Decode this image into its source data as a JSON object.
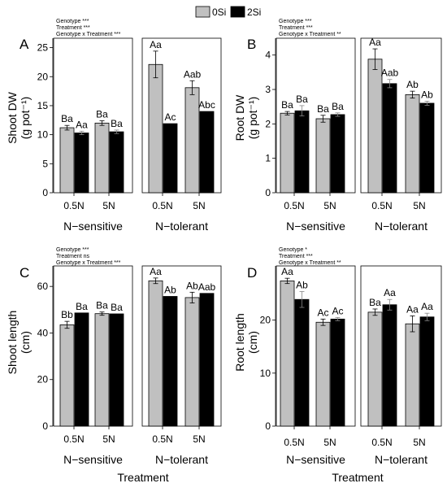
{
  "legend": {
    "items": [
      {
        "label": "0Si",
        "color": "#c0c0c0"
      },
      {
        "label": "2Si",
        "color": "#000000"
      }
    ]
  },
  "colors": {
    "s0Si": "#c0c0c0",
    "s2Si": "#000000",
    "bar_edge": "#000000"
  },
  "shared_xlabel": "Treatment",
  "chart_data": [
    {
      "type": "bar",
      "panel": "A",
      "ylabel_lines": [
        "Shoot DW",
        "(g pot⁻¹)"
      ],
      "ylim": [
        0,
        25.5
      ],
      "yticks": [
        0,
        5,
        10,
        15,
        20,
        25
      ],
      "significance": [
        "Genotype ***",
        "Treatment ***",
        "Genotype x Treatment ***"
      ],
      "groups": [
        "N−sensitive",
        "N−tolerant"
      ],
      "categories": [
        "0.5N",
        "5N"
      ],
      "series": [
        {
          "name": "0Si",
          "values": [
            [
              11.2,
              12.0
            ],
            [
              22.1,
              18.1
            ]
          ],
          "errors": [
            [
              0.4,
              0.4
            ],
            [
              2.3,
              1.2
            ]
          ],
          "letters": [
            [
              "Ba",
              "Ba"
            ],
            [
              "Aa",
              "Aab"
            ]
          ]
        },
        {
          "name": "2Si",
          "values": [
            [
              10.3,
              10.5
            ],
            [
              11.9,
              14.0
            ]
          ],
          "errors": [
            [
              0.3,
              0.3
            ],
            [
              0.0,
              0.0
            ]
          ],
          "letters": [
            [
              "Aa",
              "Ba"
            ],
            [
              "Ac",
              "Abc"
            ]
          ]
        }
      ]
    },
    {
      "type": "bar",
      "panel": "B",
      "ylabel_lines": [
        "Root DW",
        "(g pot⁻¹)"
      ],
      "ylim": [
        0,
        4.3
      ],
      "yticks": [
        0,
        1,
        2,
        3,
        4
      ],
      "significance": [
        "Genotype ***",
        "Treatment ***",
        "Genotype x Treatment **"
      ],
      "groups": [
        "N−sensitive",
        "N−tolerant"
      ],
      "categories": [
        "0.5N",
        "5N"
      ],
      "series": [
        {
          "name": "0Si",
          "values": [
            [
              2.31,
              2.15
            ],
            [
              3.88,
              2.85
            ]
          ],
          "errors": [
            [
              0.05,
              0.1
            ],
            [
              0.3,
              0.1
            ]
          ],
          "letters": [
            [
              "Ba",
              "Ba"
            ],
            [
              "Aa",
              "Ab"
            ]
          ]
        },
        {
          "name": "2Si",
          "values": [
            [
              2.38,
              2.27
            ],
            [
              3.17,
              2.6
            ]
          ],
          "errors": [
            [
              0.15,
              0.05
            ],
            [
              0.12,
              0.06
            ]
          ],
          "letters": [
            [
              "Ba",
              "Ba"
            ],
            [
              "Aab",
              "Ab"
            ]
          ]
        }
      ]
    },
    {
      "type": "bar",
      "panel": "C",
      "ylabel_lines": [
        "Shoot length",
        "(cm)"
      ],
      "ylim": [
        0,
        66
      ],
      "yticks": [
        0,
        20,
        40,
        60
      ],
      "significance": [
        "Genotype ***",
        "Treatment ns",
        "Genotype x Treatment ***"
      ],
      "groups": [
        "N−sensitive",
        "N−tolerant"
      ],
      "categories": [
        "0.5N",
        "5N"
      ],
      "series": [
        {
          "name": "0Si",
          "values": [
            [
              43.5,
              48.3
            ],
            [
              62.4,
              55.2
            ]
          ],
          "errors": [
            [
              1.5,
              0.7
            ],
            [
              1.2,
              2.3
            ]
          ],
          "letters": [
            [
              "Bb",
              "Ba"
            ],
            [
              "Aa",
              "Ab"
            ]
          ]
        },
        {
          "name": "2Si",
          "values": [
            [
              48.6,
              48.2
            ],
            [
              55.7,
              57.0
            ]
          ],
          "errors": [
            [
              0.0,
              0.0
            ],
            [
              0.0,
              0.0
            ]
          ],
          "letters": [
            [
              "Ba",
              "Ba"
            ],
            [
              "Ab",
              "Aab"
            ]
          ]
        }
      ]
    },
    {
      "type": "bar",
      "panel": "D",
      "ylabel_lines": [
        "Root length",
        "(cm)"
      ],
      "ylim": [
        0,
        29
      ],
      "yticks": [
        0,
        10,
        20
      ],
      "significance": [
        "Genotype *",
        "Treatment ***",
        "Genotype x Treatment **"
      ],
      "groups": [
        "N−sensitive",
        "N−tolerant"
      ],
      "categories": [
        "0.5N",
        "5N"
      ],
      "series": [
        {
          "name": "0Si",
          "values": [
            [
              27.4,
              19.6
            ],
            [
              21.5,
              19.3
            ]
          ],
          "errors": [
            [
              0.5,
              0.6
            ],
            [
              0.6,
              1.5
            ]
          ],
          "letters": [
            [
              "Aa",
              "Ac"
            ],
            [
              "Ba",
              "Aa"
            ]
          ]
        },
        {
          "name": "2Si",
          "values": [
            [
              23.9,
              20.2
            ],
            [
              22.9,
              20.6
            ]
          ],
          "errors": [
            [
              1.5,
              0.3
            ],
            [
              1.0,
              0.7
            ]
          ],
          "letters": [
            [
              "Ab",
              "Ac"
            ],
            [
              "Aa",
              "Aa"
            ]
          ]
        }
      ]
    }
  ]
}
